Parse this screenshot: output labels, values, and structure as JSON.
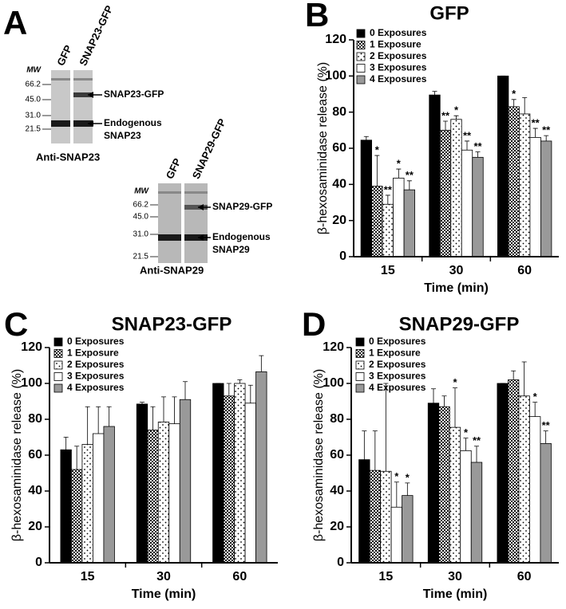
{
  "figure_a": {
    "letter": "A",
    "blots": [
      {
        "mw_label": "MW",
        "lanes": [
          "GFP",
          "SNAP23-GFP"
        ],
        "mw": [
          "66.2",
          "45.0",
          "31.0",
          "21.5"
        ],
        "bands": [
          {
            "lines": [
              "SNAP23-GFP"
            ]
          },
          {
            "lines": [
              "Endogenous",
              "SNAP23"
            ]
          }
        ],
        "antibody": "Anti-SNAP23"
      },
      {
        "mw_label": "MW",
        "lanes": [
          "GFP",
          "SNAP29-GFP"
        ],
        "mw": [
          "66.2",
          "45.0",
          "31.0",
          "21.5"
        ],
        "bands": [
          {
            "lines": [
              "SNAP29-GFP"
            ]
          },
          {
            "lines": [
              "Endogenous",
              "SNAP29"
            ]
          }
        ],
        "antibody": "Anti-SNAP29"
      }
    ]
  },
  "chart_data": [
    {
      "type": "bar",
      "letter": "B",
      "title": "GFP",
      "x_label": "Time (min)",
      "y_label": "β-hexosaminidase release (%)",
      "categories": [
        "15",
        "30",
        "60"
      ],
      "ylim": [
        0,
        120
      ],
      "yticks": [
        0,
        20,
        40,
        60,
        80,
        100,
        120
      ],
      "series": [
        {
          "name": "0 Exposures",
          "color": "#000000",
          "pattern": "solid",
          "values": [
            64.5,
            89.5,
            100
          ],
          "errors": [
            2,
            2,
            0
          ],
          "significance": [
            null,
            null,
            null
          ]
        },
        {
          "name": "1 Exposure",
          "color": "#000000",
          "pattern": "dots-dense",
          "values": [
            39,
            70,
            83
          ],
          "errors": [
            17,
            5,
            4
          ],
          "significance": [
            "*",
            "**",
            "*"
          ]
        },
        {
          "name": "2 Exposures",
          "color": "#000000",
          "pattern": "dots-sparse",
          "values": [
            29,
            76,
            79
          ],
          "errors": [
            5,
            2,
            9
          ],
          "significance": [
            "**",
            "*",
            null
          ]
        },
        {
          "name": "3 Exposures",
          "color": "#ffffff",
          "pattern": "solid",
          "values": [
            43.5,
            59,
            66
          ],
          "errors": [
            5,
            5,
            5
          ],
          "significance": [
            "*",
            "**",
            "**"
          ]
        },
        {
          "name": "4 Exposures",
          "color": "#999999",
          "pattern": "solid",
          "values": [
            37,
            55,
            64
          ],
          "errors": [
            5,
            3,
            3
          ],
          "significance": [
            "**",
            "**",
            "**"
          ]
        }
      ]
    },
    {
      "type": "bar",
      "letter": "C",
      "title": "SNAP23-GFP",
      "x_label": "Time (min)",
      "y_label": "β-hexosaminidase release (%)",
      "categories": [
        "15",
        "30",
        "60"
      ],
      "ylim": [
        0,
        120
      ],
      "yticks": [
        0,
        20,
        40,
        60,
        80,
        100,
        120
      ],
      "series": [
        {
          "name": "0 Exposures",
          "color": "#000000",
          "pattern": "solid",
          "values": [
            63,
            88.5,
            100
          ],
          "errors": [
            7,
            1,
            0
          ],
          "significance": [
            null,
            null,
            null
          ]
        },
        {
          "name": "1 Exposure",
          "color": "#000000",
          "pattern": "dots-dense",
          "values": [
            52,
            74,
            93
          ],
          "errors": [
            13,
            13,
            7
          ],
          "significance": [
            null,
            null,
            null
          ]
        },
        {
          "name": "2 Exposures",
          "color": "#000000",
          "pattern": "dots-sparse",
          "values": [
            66,
            78.5,
            100
          ],
          "errors": [
            21,
            14,
            2
          ],
          "significance": [
            null,
            null,
            null
          ]
        },
        {
          "name": "3 Exposures",
          "color": "#ffffff",
          "pattern": "solid",
          "values": [
            72,
            77.5,
            89
          ],
          "errors": [
            15,
            15,
            10
          ],
          "significance": [
            null,
            null,
            null
          ]
        },
        {
          "name": "4 Exposures",
          "color": "#999999",
          "pattern": "solid",
          "values": [
            76,
            91,
            106.5
          ],
          "errors": [
            11,
            10,
            9
          ],
          "significance": [
            null,
            null,
            null
          ]
        }
      ]
    },
    {
      "type": "bar",
      "letter": "D",
      "title": "SNAP29-GFP",
      "x_label": "Time (min)",
      "y_label": "β-hexosaminidase release (%)",
      "categories": [
        "15",
        "30",
        "60"
      ],
      "ylim": [
        0,
        120
      ],
      "yticks": [
        0,
        20,
        40,
        60,
        80,
        100,
        120
      ],
      "series": [
        {
          "name": "0 Exposures",
          "color": "#000000",
          "pattern": "solid",
          "values": [
            57.5,
            89,
            100
          ],
          "errors": [
            16,
            8,
            0
          ],
          "significance": [
            null,
            null,
            null
          ]
        },
        {
          "name": "1 Exposure",
          "color": "#000000",
          "pattern": "dots-dense",
          "values": [
            51.5,
            87,
            102
          ],
          "errors": [
            22,
            6,
            5
          ],
          "significance": [
            null,
            null,
            null
          ]
        },
        {
          "name": "2 Exposures",
          "color": "#000000",
          "pattern": "dots-sparse",
          "values": [
            51,
            75.5,
            93
          ],
          "errors": [
            49,
            22,
            19
          ],
          "significance": [
            null,
            "*",
            null
          ]
        },
        {
          "name": "3 Exposures",
          "color": "#ffffff",
          "pattern": "solid",
          "values": [
            31,
            62.5,
            81.5
          ],
          "errors": [
            14,
            7,
            8
          ],
          "significance": [
            "*",
            "*",
            "*"
          ]
        },
        {
          "name": "4 Exposures",
          "color": "#999999",
          "pattern": "solid",
          "values": [
            37.5,
            56,
            66.5
          ],
          "errors": [
            7,
            9,
            7
          ],
          "significance": [
            "*",
            "**",
            "**"
          ]
        }
      ]
    }
  ]
}
